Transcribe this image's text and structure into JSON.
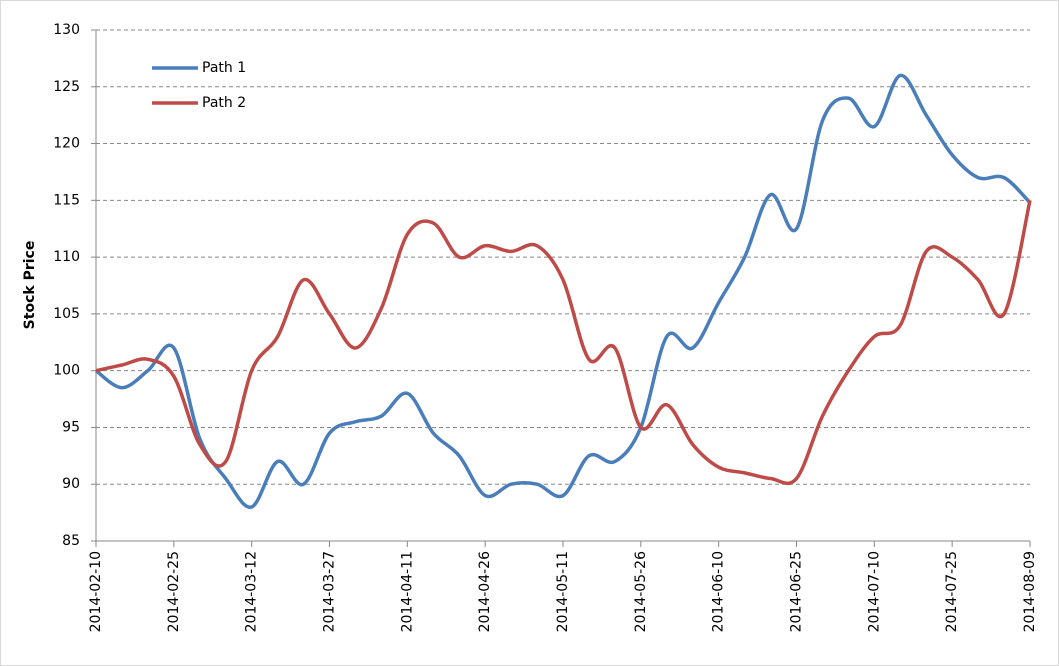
{
  "chart_data": {
    "type": "line",
    "y_label": "Stock Price",
    "x": [
      "2014-02-10",
      "2014-02-15",
      "2014-02-20",
      "2014-02-25",
      "2014-03-02",
      "2014-03-07",
      "2014-03-12",
      "2014-03-17",
      "2014-03-22",
      "2014-03-27",
      "2014-04-01",
      "2014-04-06",
      "2014-04-11",
      "2014-04-16",
      "2014-04-21",
      "2014-04-26",
      "2014-05-01",
      "2014-05-06",
      "2014-05-11",
      "2014-05-16",
      "2014-05-21",
      "2014-05-26",
      "2014-05-31",
      "2014-06-05",
      "2014-06-10",
      "2014-06-15",
      "2014-06-20",
      "2014-06-25",
      "2014-06-30",
      "2014-07-05",
      "2014-07-10",
      "2014-07-15",
      "2014-07-20",
      "2014-07-25",
      "2014-07-30",
      "2014-08-04",
      "2014-08-09"
    ],
    "series": [
      {
        "name": "Path 1",
        "color": "#4a7ebb",
        "values": [
          100,
          98.5,
          100,
          102,
          94,
          90.5,
          88,
          92,
          90,
          94.5,
          95.5,
          96,
          98,
          94.5,
          92.5,
          89,
          90,
          90,
          89,
          92.5,
          92,
          95,
          103,
          102,
          106,
          110,
          115.5,
          112.5,
          122,
          124,
          121.5,
          126,
          122.5,
          119,
          117,
          117,
          114.8
        ]
      },
      {
        "name": "Path 2",
        "color": "#be4b48",
        "values": [
          100,
          100.5,
          101,
          99.5,
          93.5,
          92,
          100,
          103,
          108,
          105,
          102,
          105.5,
          112,
          113,
          110,
          111,
          110.5,
          111,
          108,
          101,
          102,
          95,
          97,
          93.5,
          91.5,
          91,
          90.5,
          90.5,
          96,
          100,
          103,
          104,
          110.5,
          110,
          108,
          105,
          115
        ]
      }
    ],
    "xlim": [
      "2014-02-10",
      "2014-08-09"
    ],
    "xticks": [
      "2014-02-10",
      "2014-02-25",
      "2014-03-12",
      "2014-03-27",
      "2014-04-11",
      "2014-04-26",
      "2014-05-11",
      "2014-05-26",
      "2014-06-10",
      "2014-06-25",
      "2014-07-10",
      "2014-07-25",
      "2014-08-09"
    ],
    "ylim": [
      85,
      130
    ],
    "yticks": [
      85,
      90,
      95,
      100,
      105,
      110,
      115,
      120,
      125,
      130
    ],
    "grid": true,
    "legend": "top-left"
  }
}
